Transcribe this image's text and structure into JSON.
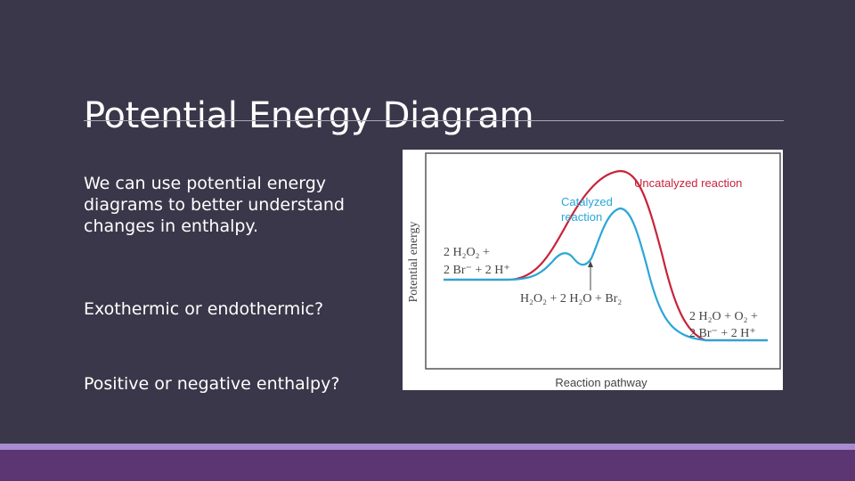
{
  "slide": {
    "title": "Potential Energy Diagram",
    "paragraphs": [
      "We can use potential energy diagrams to better understand changes in enthalpy.",
      "Exothermic or endothermic?",
      "Positive or negative enthalpy?"
    ]
  },
  "diagram": {
    "y_axis_label": "Potential energy",
    "x_axis_label": "Reaction pathway",
    "uncatalyzed_label": "Uncatalyzed reaction",
    "catalyzed_label_line1": "Catalyzed",
    "catalyzed_label_line2": "reaction",
    "reactants_line1": "2 H₂O₂ +",
    "reactants_line2": "2 Br⁻ + 2 H⁺",
    "intermediate": "H₂O₂ + 2 H₂O + Br₂",
    "products_line1": "2 H₂O + O₂ +",
    "products_line2": "2 Br⁻ + 2 H⁺",
    "colors": {
      "uncatalyzed": "#c8233a",
      "catalyzed": "#2aa6d8",
      "frame": "#555555",
      "text": "#444444"
    }
  }
}
